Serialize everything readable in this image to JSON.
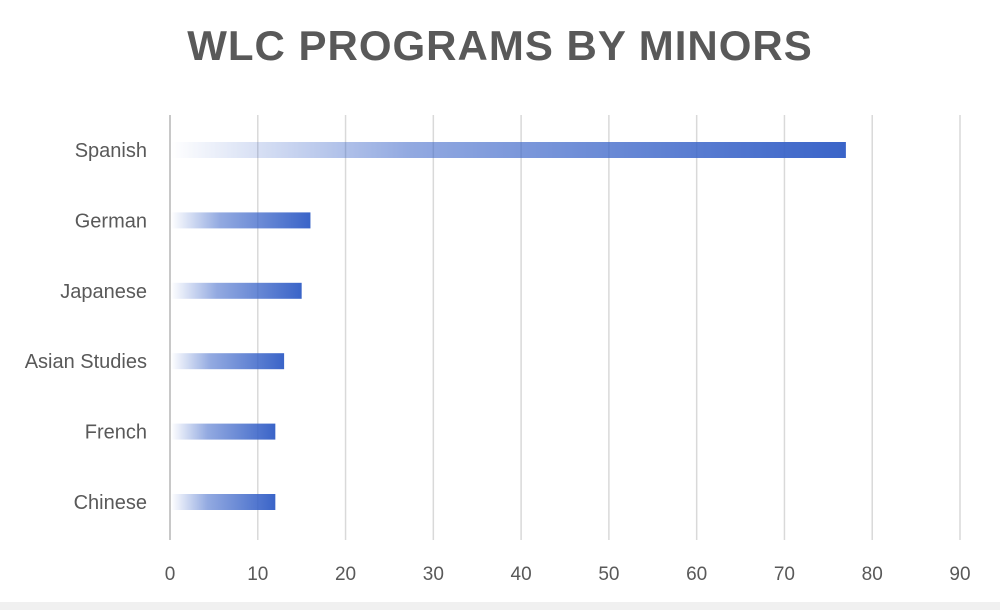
{
  "chart_data": {
    "type": "bar",
    "orientation": "horizontal",
    "title": "WLC PROGRAMS BY MINORS",
    "categories": [
      "Spanish",
      "German",
      "Japanese",
      "Asian Studies",
      "French",
      "Chinese"
    ],
    "values": [
      77,
      16,
      15,
      13,
      12,
      12
    ],
    "xlim": [
      0,
      90
    ],
    "x_ticks": [
      0,
      10,
      20,
      30,
      40,
      50,
      60,
      70,
      80,
      90
    ],
    "grid": true,
    "legend": "none",
    "bar_color": "#3a64c8",
    "grid_color": "#d9d9d9",
    "text_color": "#595959"
  }
}
